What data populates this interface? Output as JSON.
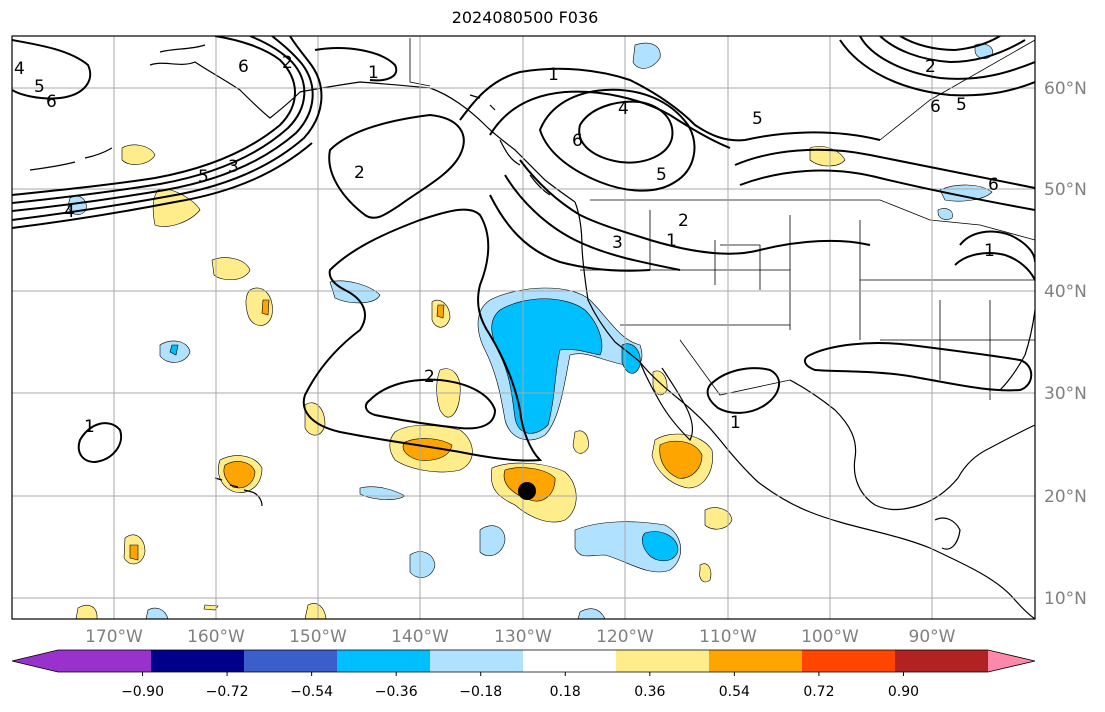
{
  "title": "2024080500 F036",
  "map": {
    "lon_labels": [
      "170°W",
      "160°W",
      "150°W",
      "140°W",
      "130°W",
      "120°W",
      "110°W",
      "100°W",
      "90°W"
    ],
    "lat_labels": [
      "60°N",
      "50°N",
      "40°N",
      "30°N",
      "20°N",
      "10°N"
    ],
    "grid": true,
    "contour_labels": [
      "1",
      "2",
      "3",
      "4",
      "5",
      "6"
    ],
    "marker": {
      "lon": -130,
      "lat": 20.3
    }
  },
  "colorbar": {
    "ticks": [
      "−0.90",
      "−0.72",
      "−0.54",
      "−0.36",
      "−0.18",
      "0.18",
      "0.36",
      "0.54",
      "0.72",
      "0.90"
    ],
    "colors": [
      "#9932cc",
      "#00008b",
      "#3a5fcd",
      "#00bfff",
      "#b0e2ff",
      "#ffffff",
      "#ffec8b",
      "#ffa500",
      "#ff4500",
      "#b22222",
      "#ff88aa"
    ]
  }
}
